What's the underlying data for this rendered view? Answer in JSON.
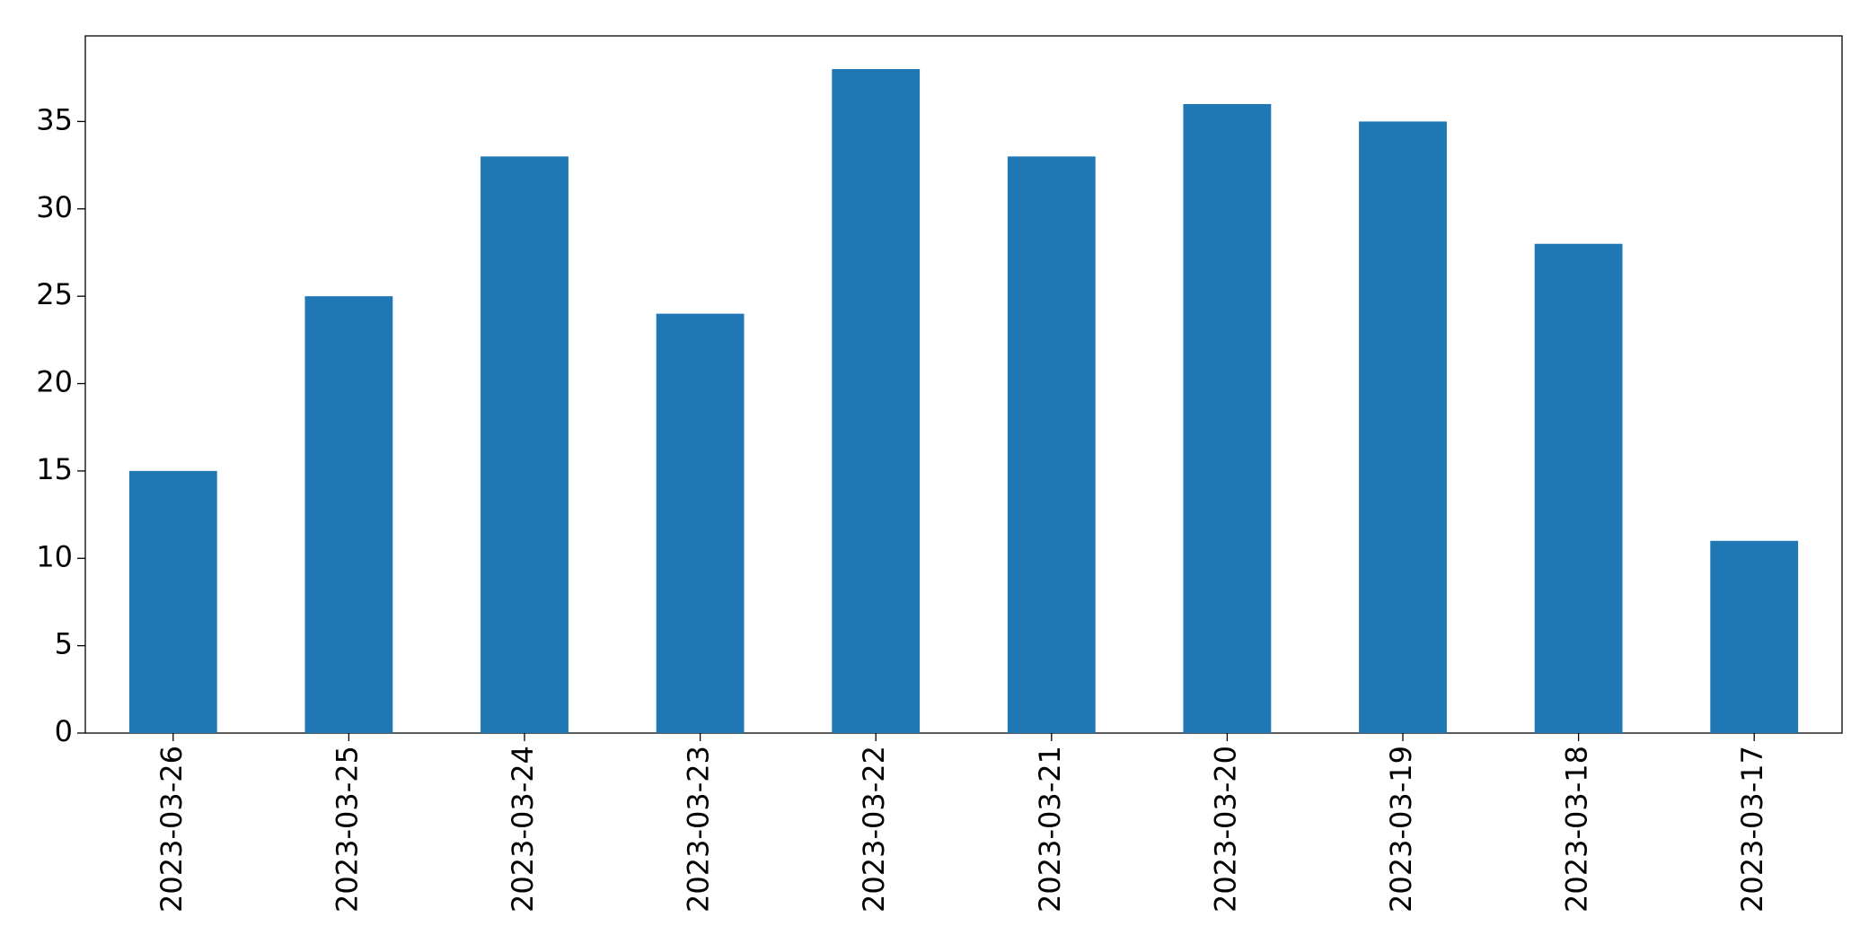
{
  "chart_data": {
    "type": "bar",
    "categories": [
      "2023-03-26",
      "2023-03-25",
      "2023-03-24",
      "2023-03-23",
      "2023-03-22",
      "2023-03-21",
      "2023-03-20",
      "2023-03-19",
      "2023-03-18",
      "2023-03-17"
    ],
    "values": [
      15,
      25,
      33,
      24,
      38,
      33,
      36,
      35,
      28,
      11
    ],
    "color": "#1f77b4",
    "ylim": [
      0,
      39.9
    ],
    "yticks": [
      0,
      5,
      10,
      15,
      20,
      25,
      30,
      35
    ],
    "grid": false
  }
}
